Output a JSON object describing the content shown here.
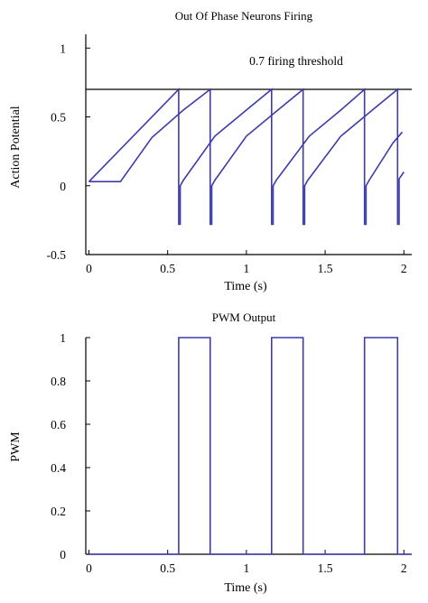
{
  "chart_data": [
    {
      "type": "line",
      "title": "Out Of Phase Neurons Firing",
      "xlabel": "Time (s)",
      "ylabel": "Action Potential",
      "xlim": [
        -0.02,
        2.05
      ],
      "ylim": [
        -0.5,
        1.1
      ],
      "xticks": [
        0,
        0.5,
        1,
        1.5,
        2
      ],
      "xtick_labels": [
        "0",
        "0.5",
        "1",
        "1.5",
        "2"
      ],
      "yticks": [
        -0.5,
        0,
        0.5,
        1
      ],
      "ytick_labels": [
        "-0.5",
        "0",
        "0.5",
        "1"
      ],
      "grid": false,
      "series_color": "#3c3caa",
      "threshold": {
        "y": 0.7,
        "label": "0.7 firing threshold",
        "color": "#000000"
      },
      "series": [
        {
          "x": [
            0.0,
            0.57,
            0.57,
            0.57,
            0.58,
            0.58,
            0.6,
            0.8,
            1.0,
            1.16,
            1.16,
            1.16,
            1.17,
            1.17,
            1.19,
            1.4,
            1.6,
            1.75,
            1.75,
            1.75,
            1.76,
            1.76,
            1.78,
            1.93,
            1.99
          ],
          "y": [
            0.03,
            0.7,
            0.7,
            -0.28,
            -0.28,
            0.0,
            0.04,
            0.36,
            0.55,
            0.7,
            0.7,
            -0.28,
            -0.28,
            0.0,
            0.04,
            0.36,
            0.55,
            0.7,
            0.7,
            -0.28,
            -0.28,
            0.0,
            0.04,
            0.31,
            0.39
          ]
        },
        {
          "x": [
            0.0,
            0.2,
            0.4,
            0.6,
            0.77,
            0.77,
            0.77,
            0.78,
            0.78,
            0.8,
            1.0,
            1.2,
            1.36,
            1.36,
            1.36,
            1.37,
            1.37,
            1.39,
            1.6,
            1.8,
            1.96,
            1.96,
            1.96,
            1.97,
            1.97,
            2.0
          ],
          "y": [
            0.03,
            0.03,
            0.35,
            0.55,
            0.7,
            0.7,
            -0.28,
            -0.28,
            0.0,
            0.04,
            0.36,
            0.55,
            0.7,
            0.7,
            -0.28,
            -0.28,
            0.0,
            0.04,
            0.36,
            0.55,
            0.7,
            0.7,
            -0.28,
            -0.28,
            0.05,
            0.1
          ]
        }
      ]
    },
    {
      "type": "line",
      "title": "PWM Output",
      "xlabel": "Time (s)",
      "ylabel": "PWM",
      "xlim": [
        -0.02,
        2.05
      ],
      "ylim": [
        0,
        1
      ],
      "xticks": [
        0,
        0.5,
        1,
        1.5,
        2
      ],
      "xtick_labels": [
        "0",
        "0.5",
        "1",
        "1.5",
        "2"
      ],
      "yticks": [
        0,
        0.2,
        0.4,
        0.6,
        0.8,
        1
      ],
      "ytick_labels": [
        "0",
        "0.2",
        "0.4",
        "0.6",
        "0.8",
        "1"
      ],
      "grid": false,
      "series_color": "#3c3caa",
      "series": [
        {
          "x": [
            0,
            0.57,
            0.57,
            0.77,
            0.77,
            1.16,
            1.16,
            1.36,
            1.36,
            1.75,
            1.75,
            1.96,
            1.96,
            2.05
          ],
          "y": [
            0,
            0,
            1,
            1,
            0,
            0,
            1,
            1,
            0,
            0,
            1,
            1,
            0,
            0
          ]
        }
      ]
    }
  ]
}
